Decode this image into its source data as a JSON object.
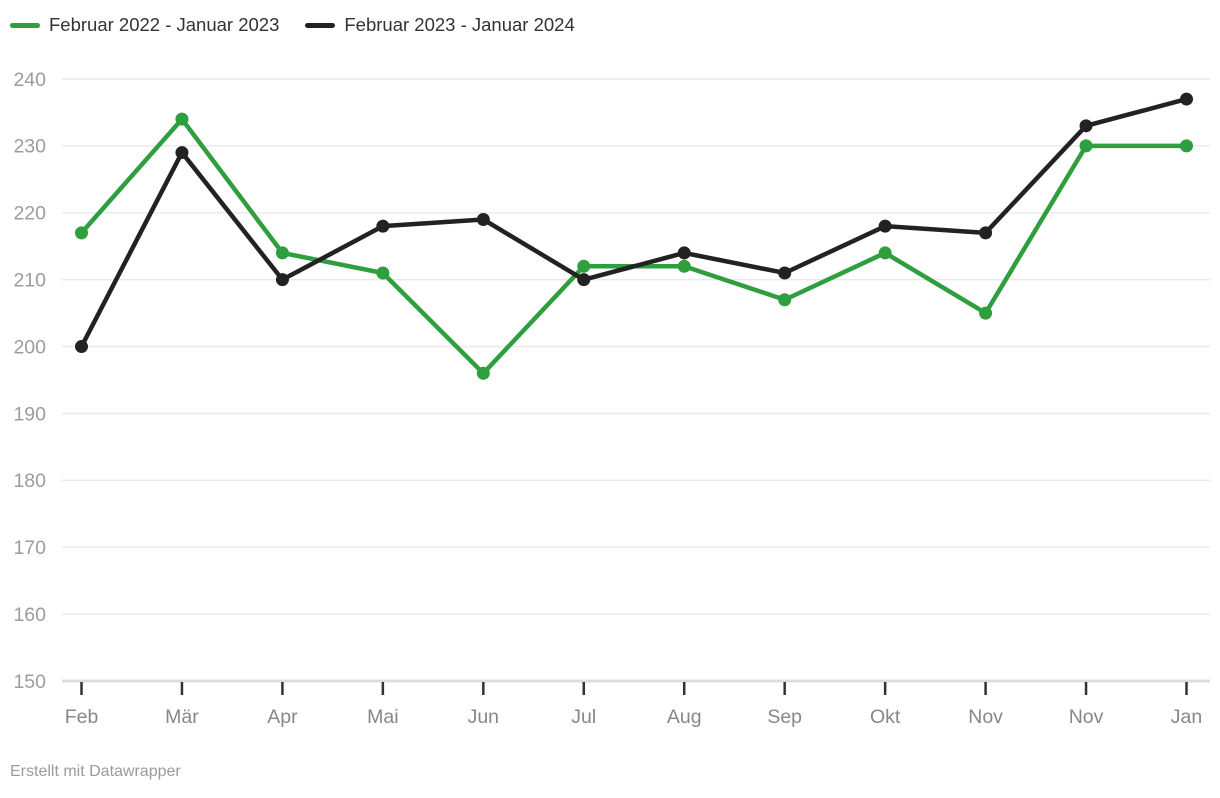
{
  "legend": {
    "items": [
      {
        "label": "Februar 2022 - Januar 2023",
        "color": "#2f9e3e"
      },
      {
        "label": "Februar 2023 - Januar 2024",
        "color": "#222222"
      }
    ]
  },
  "footer": {
    "prefix": "Erstellt mit ",
    "link_label": "Datawrapper"
  },
  "colors": {
    "grid_line": "#e9e9e9",
    "baseline": "#dcdcdc",
    "axis_tick": "#333333",
    "y_tick_label": "#9c9c9c",
    "x_tick_label": "#878787",
    "legend_text": "#333333",
    "background": "#ffffff"
  },
  "chart_data": {
    "type": "line",
    "title": "",
    "categories": [
      "Feb",
      "Mär",
      "Apr",
      "Mai",
      "Jun",
      "Jul",
      "Aug",
      "Sep",
      "Okt",
      "Nov",
      "Nov",
      "Jan"
    ],
    "series": [
      {
        "name": "Februar 2022 - Januar 2023",
        "color": "#2f9e3e",
        "values": [
          217,
          234,
          214,
          211,
          196,
          212,
          212,
          207,
          214,
          205,
          230,
          230
        ]
      },
      {
        "name": "Februar 2023 - Januar 2024",
        "color": "#222222",
        "values": [
          200,
          229,
          210,
          218,
          219,
          210,
          214,
          211,
          218,
          217,
          233,
          237
        ]
      }
    ],
    "ylim": [
      150,
      240
    ],
    "yticks": [
      150,
      160,
      170,
      180,
      190,
      200,
      210,
      220,
      230,
      240
    ],
    "xlabel": "",
    "ylabel": "",
    "grid": "horizontal",
    "legend_position": "top-left",
    "marker": "circle"
  }
}
